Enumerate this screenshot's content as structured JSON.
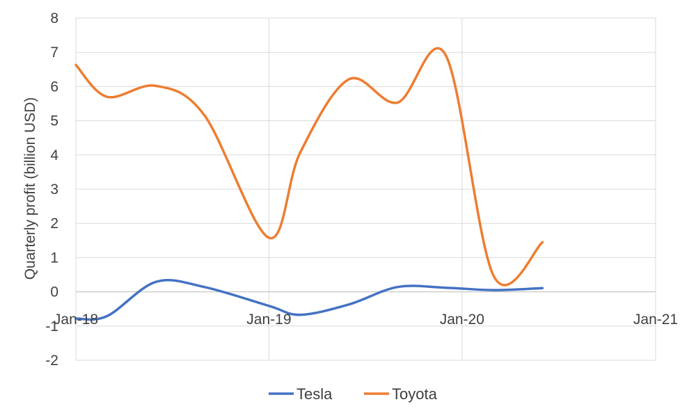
{
  "chart_data": {
    "type": "line",
    "title": "",
    "xlabel": "",
    "ylabel": "Quarterly profit (billion USD)",
    "ylim": [
      -2,
      8
    ],
    "yticks": [
      -2,
      -1,
      0,
      1,
      2,
      3,
      4,
      5,
      6,
      7,
      8
    ],
    "xlim": [
      "2018-01-01",
      "2021-01-01"
    ],
    "xticks": [
      {
        "date": "2018-01-01",
        "label": "Jan-18"
      },
      {
        "date": "2019-01-01",
        "label": "Jan-19"
      },
      {
        "date": "2020-01-01",
        "label": "Jan-20"
      },
      {
        "date": "2021-01-01",
        "label": "Jan-21"
      }
    ],
    "grid": true,
    "legend": "bottom",
    "x": [
      "2018-01-01",
      "2018-03-01",
      "2018-06-01",
      "2018-09-01",
      "2019-01-01",
      "2019-03-01",
      "2019-06-01",
      "2019-09-01",
      "2019-12-01",
      "2020-03-01",
      "2020-06-01"
    ],
    "series": [
      {
        "name": "Tesla",
        "color": "#4472C4",
        "values": [
          -0.78,
          -0.71,
          0.29,
          0.14,
          -0.41,
          -0.67,
          -0.37,
          0.14,
          0.12,
          0.05,
          0.11
        ]
      },
      {
        "name": "Toyota",
        "color": "#ED7D31",
        "values": [
          6.63,
          5.7,
          6.02,
          5.16,
          1.58,
          4.07,
          6.21,
          5.53,
          6.92,
          0.46,
          1.45
        ]
      }
    ]
  }
}
